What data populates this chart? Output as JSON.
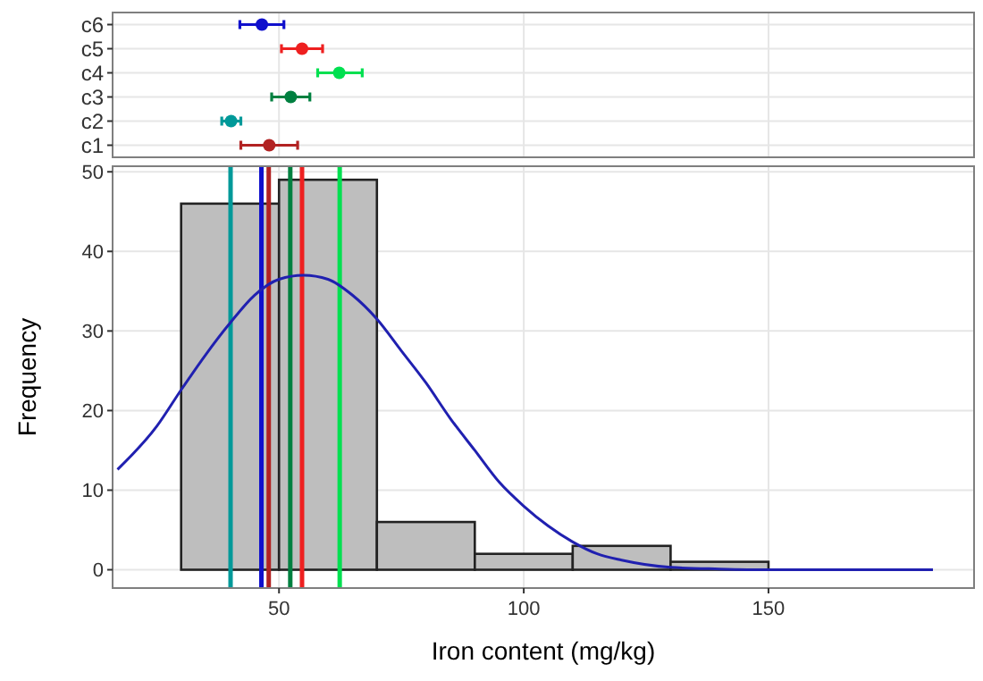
{
  "chart_data": [
    {
      "type": "scatter",
      "orientation": "horizontal",
      "categories": [
        "c6",
        "c5",
        "c4",
        "c3",
        "c2",
        "c1"
      ],
      "values": [
        46.5,
        54.7,
        62.3,
        52.4,
        40.2,
        48
      ],
      "errors": [
        [
          42,
          51
        ],
        [
          50.5,
          58.9
        ],
        [
          57.9,
          67
        ],
        [
          48.5,
          56.3
        ],
        [
          38.3,
          42.2
        ],
        [
          42.2,
          53.8
        ]
      ],
      "colors": [
        "#1010cc",
        "#ee2020",
        "#00e050",
        "#008040",
        "#009999",
        "#b22222"
      ],
      "xlim": [
        16,
        192
      ],
      "xticks": [
        50,
        100,
        150
      ],
      "tick_labels": "y",
      "grid": true,
      "marker": "circle"
    },
    {
      "type": "histogram",
      "bins": [
        30,
        50,
        70,
        90,
        110,
        130,
        150
      ],
      "values": [
        46,
        49,
        6,
        2,
        3,
        1
      ],
      "color": "#bebebe",
      "series": [
        {
          "type": "line",
          "color": "#2020b0",
          "x": [
            17,
            25,
            30,
            35,
            40,
            45,
            50,
            55,
            60,
            65,
            70,
            75,
            80,
            85,
            90,
            95,
            100,
            105,
            110,
            115,
            120,
            130,
            140,
            150,
            165,
            183.6
          ],
          "values": [
            12.6,
            18,
            22.6,
            27,
            31,
            34.5,
            36.5,
            37,
            36.5,
            34.5,
            31.5,
            27.5,
            23.5,
            19,
            15,
            11,
            8,
            5.5,
            3.5,
            2,
            1.2,
            0.3,
            0.1,
            0,
            0,
            0
          ]
        }
      ],
      "ref_lines": [
        {
          "axis": "x",
          "value": 40.1,
          "color": "#009999"
        },
        {
          "axis": "x",
          "value": 46.4,
          "color": "#1010cc"
        },
        {
          "axis": "x",
          "value": 47.9,
          "color": "#b22222"
        },
        {
          "axis": "x",
          "value": 52.3,
          "color": "#008040"
        },
        {
          "axis": "x",
          "value": 54.7,
          "color": "#ee2020"
        },
        {
          "axis": "x",
          "value": 62.4,
          "color": "#00e050"
        }
      ],
      "xlabel": "Iron content (mg/kg)",
      "ylabel": "Frequency",
      "xlim": [
        16,
        192
      ],
      "ylim": [
        -2.3,
        50.7
      ],
      "xticks": [
        50,
        100,
        150
      ],
      "yticks": [
        0,
        10,
        20,
        30,
        40,
        50
      ],
      "grid": true
    }
  ]
}
